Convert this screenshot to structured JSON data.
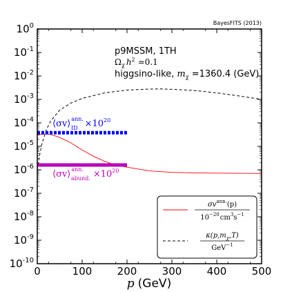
{
  "chart_data": {
    "type": "line",
    "x_scale": "linear",
    "y_scale": "log",
    "xlim": [
      0,
      500
    ],
    "ylim": [
      1e-10,
      1
    ],
    "xlabel_var": "p",
    "xlabel_unit": "(GeV)",
    "x_ticks": [
      "0",
      "100",
      "200",
      "300",
      "400",
      "500"
    ],
    "y_ticks": [
      {
        "base": "10",
        "exp": "0"
      },
      {
        "base": "10",
        "exp": "-1"
      },
      {
        "base": "10",
        "exp": "-2"
      },
      {
        "base": "10",
        "exp": "-3"
      },
      {
        "base": "10",
        "exp": "-4"
      },
      {
        "base": "10",
        "exp": "-5"
      },
      {
        "base": "10",
        "exp": "-6"
      },
      {
        "base": "10",
        "exp": "-7"
      },
      {
        "base": "10",
        "exp": "-8"
      },
      {
        "base": "10",
        "exp": "-9"
      },
      {
        "base": "10",
        "exp": "-10"
      }
    ],
    "credit": "BayesFITS (2013)",
    "annotations": {
      "model": "p9MSSM, 1TH",
      "omega_prefix": "Ω",
      "omega_sub": "χ",
      "omega_rest": "h",
      "omega_value": "≃0.1",
      "higgsino_prefix": "higgsino-like, ",
      "higgsino_m": "m",
      "higgsino_sub": "χ",
      "higgsino_value": " =1360.4 (GeV)"
    },
    "series": [
      {
        "color": "#ff0000",
        "style": "solid",
        "legend_numer": "σv",
        "legend_numer_sup": "ann.",
        "legend_numer_tail": "(p)",
        "legend_denom": "10",
        "legend_denom_sup1": "−20",
        "legend_denom_unit": "cm",
        "legend_denom_sup2": "3",
        "legend_denom_unit2": "s",
        "legend_denom_sup3": "−1",
        "x": [
          0,
          10,
          20,
          30,
          50,
          75,
          100,
          125,
          150,
          175,
          200,
          250,
          300,
          350,
          400,
          450,
          500
        ],
        "y": [
          3e-05,
          3.3e-05,
          3.4e-05,
          3.2e-05,
          2.4e-05,
          1.4e-05,
          7e-06,
          3.8e-06,
          2.3e-06,
          1.6e-06,
          1.3e-06,
          9e-07,
          7.8e-07,
          7.4e-07,
          7.2e-07,
          7.1e-07,
          7e-07
        ]
      },
      {
        "color": "#000000",
        "style": "dashed",
        "legend_numer": "κ(p,m",
        "legend_numer_sub": "χ",
        "legend_numer_tail": ",T)",
        "legend_denom": "GeV",
        "legend_denom_sup": "−1",
        "x": [
          0,
          5,
          10,
          20,
          30,
          50,
          75,
          100,
          150,
          200,
          250,
          275,
          300,
          350,
          400,
          450,
          500
        ],
        "y": [
          1e-06,
          4e-06,
          1.2e-05,
          5e-05,
          0.00012,
          0.00035,
          0.0007,
          0.0011,
          0.0019,
          0.0025,
          0.00275,
          0.0028,
          0.0027,
          0.0024,
          0.0019,
          0.0014,
          0.001
        ]
      },
      {
        "color": "#0000ff",
        "style": "dotted-thick",
        "label_prefix": "⟨σv⟩",
        "label_sup": "ann.",
        "label_sub": "ID",
        "label_suffix": "×10",
        "label_exp": "20",
        "x": [
          0,
          200
        ],
        "y": [
          3.8e-05,
          3.8e-05
        ]
      },
      {
        "color": "#bb00bb",
        "style": "solid-thick",
        "label_prefix": "⟨σv⟩",
        "label_sup": "ann.",
        "label_sub": "abund.",
        "label_suffix": "×10",
        "label_exp": "20",
        "x": [
          0,
          200
        ],
        "y": [
          1.6e-06,
          1.6e-06
        ]
      }
    ]
  }
}
